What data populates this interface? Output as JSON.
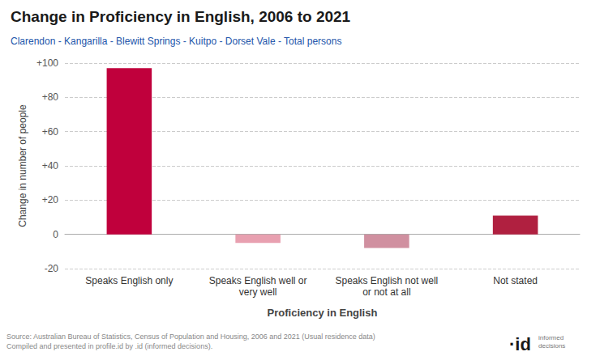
{
  "chart_data": {
    "type": "bar",
    "title": "Change in Proficiency in English, 2006 to 2021",
    "subtitle": "Clarendon - Kangarilla - Blewitt Springs - Kuitpo - Dorset Vale - Total persons",
    "categories": [
      "Speaks English only",
      "Speaks English well or\nvery well",
      "Speaks English not well\nor not at all",
      "Not stated"
    ],
    "values": [
      97,
      -5,
      -8,
      11
    ],
    "colors": [
      "#c0003c",
      "#e8a0b0",
      "#d090a0",
      "#b02040"
    ],
    "ylabel": "Change in number of people",
    "xlabel": "Proficiency in English",
    "ylim": [
      -20,
      100
    ],
    "yticks": [
      -20,
      0,
      {
        "value": 20,
        "label": "+20"
      },
      {
        "value": 40,
        "label": "+40"
      },
      {
        "value": 60,
        "label": "+60"
      },
      {
        "value": 80,
        "label": "+80"
      },
      {
        "value": 100,
        "label": "+100"
      }
    ],
    "grid": true,
    "annotations": [
      "Source: Australian Bureau of Statistics, Census of Population and Housing, 2006 and 2021 (Usual residence data)",
      "Compiled and presented in profile.id by .id (informed decisions).",
      "·id",
      "informed\ndecisions"
    ]
  }
}
